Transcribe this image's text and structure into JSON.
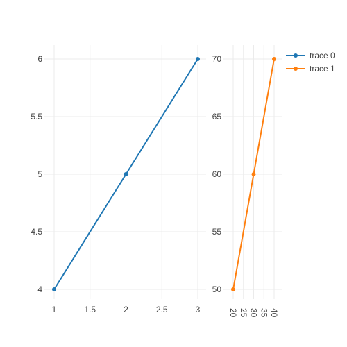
{
  "chart_data": [
    {
      "type": "line",
      "subplot": "left",
      "xlim": [
        1,
        3
      ],
      "ylim": [
        4,
        6
      ],
      "xticks": [
        1,
        1.5,
        2,
        2.5,
        3
      ],
      "yticks": [
        4,
        4.5,
        5,
        5.5,
        6
      ],
      "grid": true,
      "series": [
        {
          "name": "trace 0",
          "color": "#1f77b4",
          "x": [
            1,
            2,
            3
          ],
          "y": [
            4,
            5,
            6
          ]
        }
      ]
    },
    {
      "type": "line",
      "subplot": "right",
      "xlim": [
        20,
        40
      ],
      "ylim": [
        50,
        70
      ],
      "xticks": [
        20,
        25,
        30,
        35,
        40
      ],
      "yticks": [
        50,
        55,
        60,
        65,
        70
      ],
      "xtick_rotation": 90,
      "grid": true,
      "series": [
        {
          "name": "trace 1",
          "color": "#ff7f0e",
          "x": [
            20,
            30,
            40
          ],
          "y": [
            50,
            60,
            70
          ]
        }
      ]
    }
  ],
  "legend": {
    "position": "top-right",
    "items": [
      {
        "name": "trace 0",
        "color": "#1f77b4"
      },
      {
        "name": "trace 1",
        "color": "#ff7f0e"
      }
    ]
  }
}
